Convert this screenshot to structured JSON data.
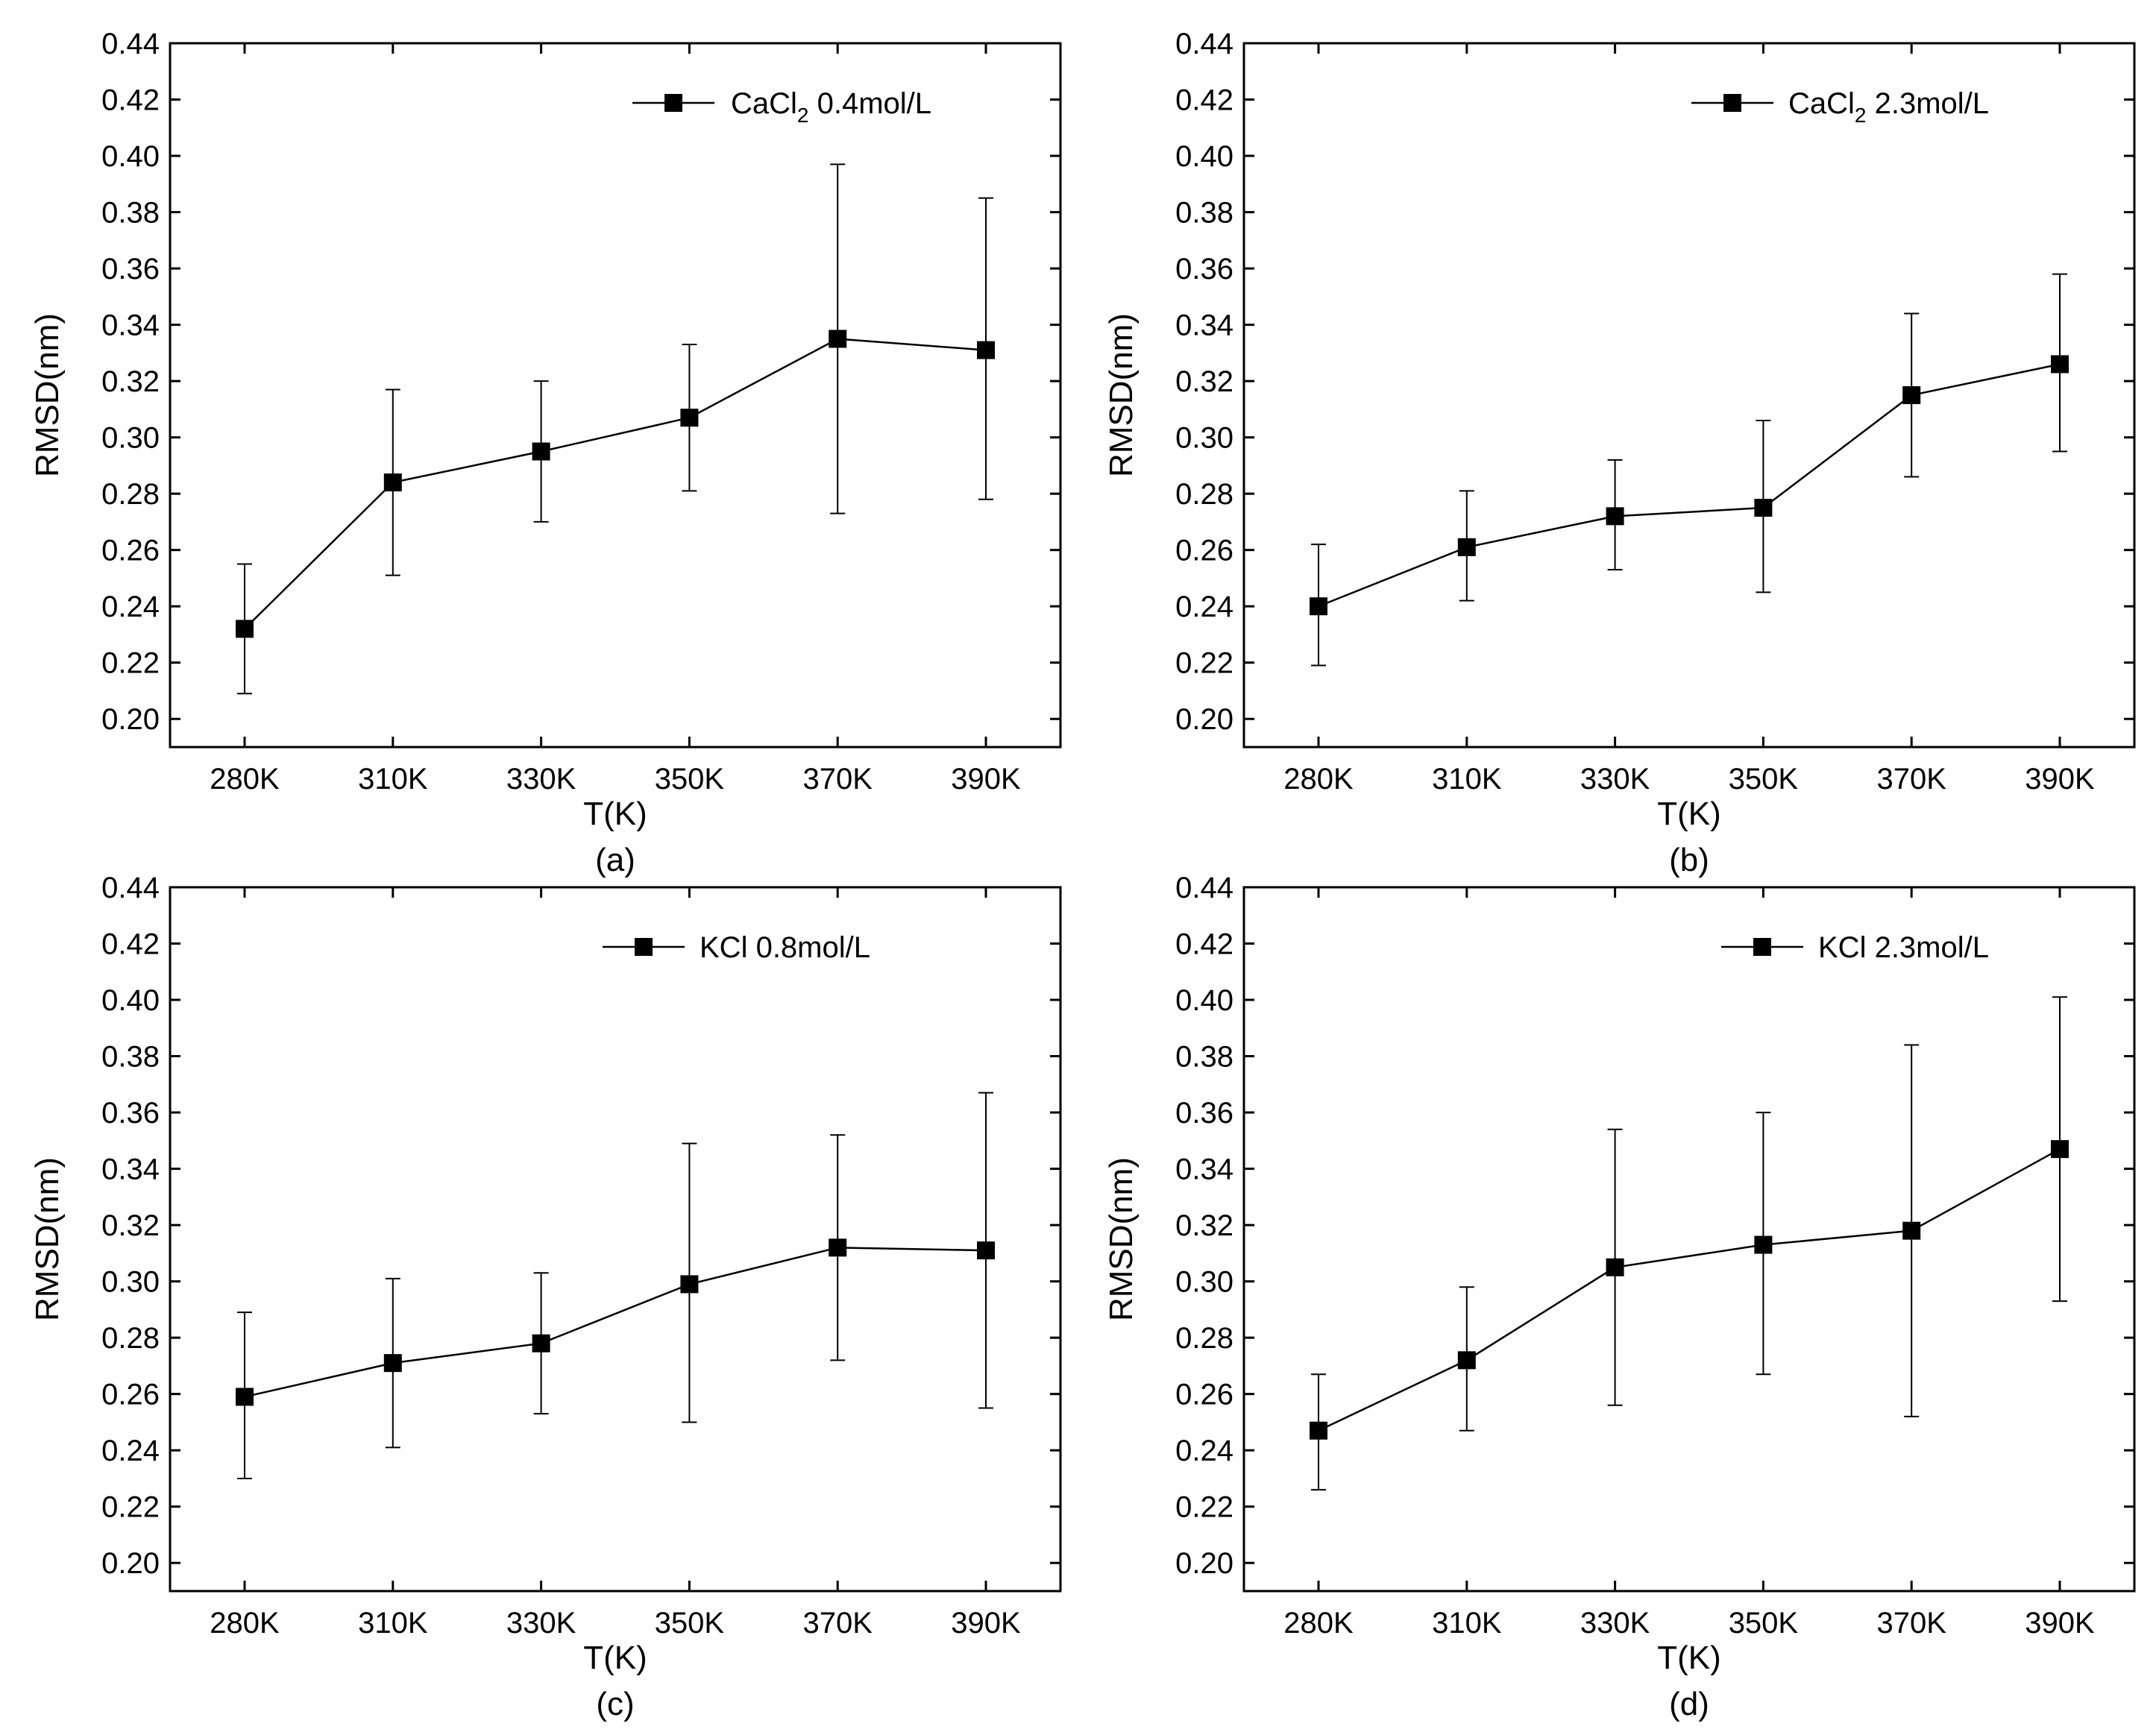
{
  "chart_data": [
    {
      "type": "line",
      "panel_label": "(a)",
      "xlabel": "T(K)",
      "ylabel": "RMSD(nm)",
      "categories": [
        "280K",
        "310K",
        "330K",
        "350K",
        "370K",
        "390K"
      ],
      "ylim": [
        0.19,
        0.44
      ],
      "yticks": [
        "0.20",
        "0.22",
        "0.24",
        "0.26",
        "0.28",
        "0.30",
        "0.32",
        "0.34",
        "0.36",
        "0.38",
        "0.40",
        "0.42",
        "0.44"
      ],
      "legend_position": "top-right",
      "series": [
        {
          "name": "CaCl2 0.4mol/L",
          "legend_main": "CaCl",
          "legend_sub": "2",
          "legend_rest": " 0.4mol/L",
          "values": [
            0.232,
            0.284,
            0.295,
            0.307,
            0.335,
            0.331
          ],
          "err_low": [
            0.209,
            0.251,
            0.27,
            0.281,
            0.273,
            0.278
          ],
          "err_high": [
            0.255,
            0.317,
            0.32,
            0.333,
            0.397,
            0.385
          ]
        }
      ]
    },
    {
      "type": "line",
      "panel_label": "(b)",
      "xlabel": "T(K)",
      "ylabel": "RMSD(nm)",
      "categories": [
        "280K",
        "310K",
        "330K",
        "350K",
        "370K",
        "390K"
      ],
      "ylim": [
        0.19,
        0.44
      ],
      "yticks": [
        "0.20",
        "0.22",
        "0.24",
        "0.26",
        "0.28",
        "0.30",
        "0.32",
        "0.34",
        "0.36",
        "0.38",
        "0.40",
        "0.42",
        "0.44"
      ],
      "legend_position": "top-right",
      "series": [
        {
          "name": "CaCl2 2.3mol/L",
          "legend_main": "CaCl",
          "legend_sub": "2",
          "legend_rest": " 2.3mol/L",
          "values": [
            0.24,
            0.261,
            0.272,
            0.275,
            0.315,
            0.326
          ],
          "err_low": [
            0.219,
            0.242,
            0.253,
            0.245,
            0.286,
            0.295
          ],
          "err_high": [
            0.262,
            0.281,
            0.292,
            0.306,
            0.344,
            0.358
          ]
        }
      ]
    },
    {
      "type": "line",
      "panel_label": "(c)",
      "xlabel": "T(K)",
      "ylabel": "RMSD(nm)",
      "categories": [
        "280K",
        "310K",
        "330K",
        "350K",
        "370K",
        "390K"
      ],
      "ylim": [
        0.19,
        0.44
      ],
      "yticks": [
        "0.20",
        "0.22",
        "0.24",
        "0.26",
        "0.28",
        "0.30",
        "0.32",
        "0.34",
        "0.36",
        "0.38",
        "0.40",
        "0.42",
        "0.44"
      ],
      "legend_position": "top-right",
      "series": [
        {
          "name": "KCl 0.8mol/L",
          "legend_main": "KCl 0.8mol/L",
          "legend_sub": "",
          "legend_rest": "",
          "values": [
            0.259,
            0.271,
            0.278,
            0.299,
            0.312,
            0.311
          ],
          "err_low": [
            0.23,
            0.241,
            0.253,
            0.25,
            0.272,
            0.255
          ],
          "err_high": [
            0.289,
            0.301,
            0.303,
            0.349,
            0.352,
            0.367
          ]
        }
      ]
    },
    {
      "type": "line",
      "panel_label": "(d)",
      "xlabel": "T(K)",
      "ylabel": "RMSD(nm)",
      "categories": [
        "280K",
        "310K",
        "330K",
        "350K",
        "370K",
        "390K"
      ],
      "ylim": [
        0.19,
        0.44
      ],
      "yticks": [
        "0.20",
        "0.22",
        "0.24",
        "0.26",
        "0.28",
        "0.30",
        "0.32",
        "0.34",
        "0.36",
        "0.38",
        "0.40",
        "0.42",
        "0.44"
      ],
      "legend_position": "top-right",
      "series": [
        {
          "name": "KCl 2.3mol/L",
          "legend_main": "KCl 2.3mol/L",
          "legend_sub": "",
          "legend_rest": "",
          "values": [
            0.247,
            0.272,
            0.305,
            0.313,
            0.318,
            0.347
          ],
          "err_low": [
            0.226,
            0.247,
            0.256,
            0.267,
            0.252,
            0.293
          ],
          "err_high": [
            0.267,
            0.298,
            0.354,
            0.36,
            0.384,
            0.401
          ]
        }
      ]
    }
  ]
}
